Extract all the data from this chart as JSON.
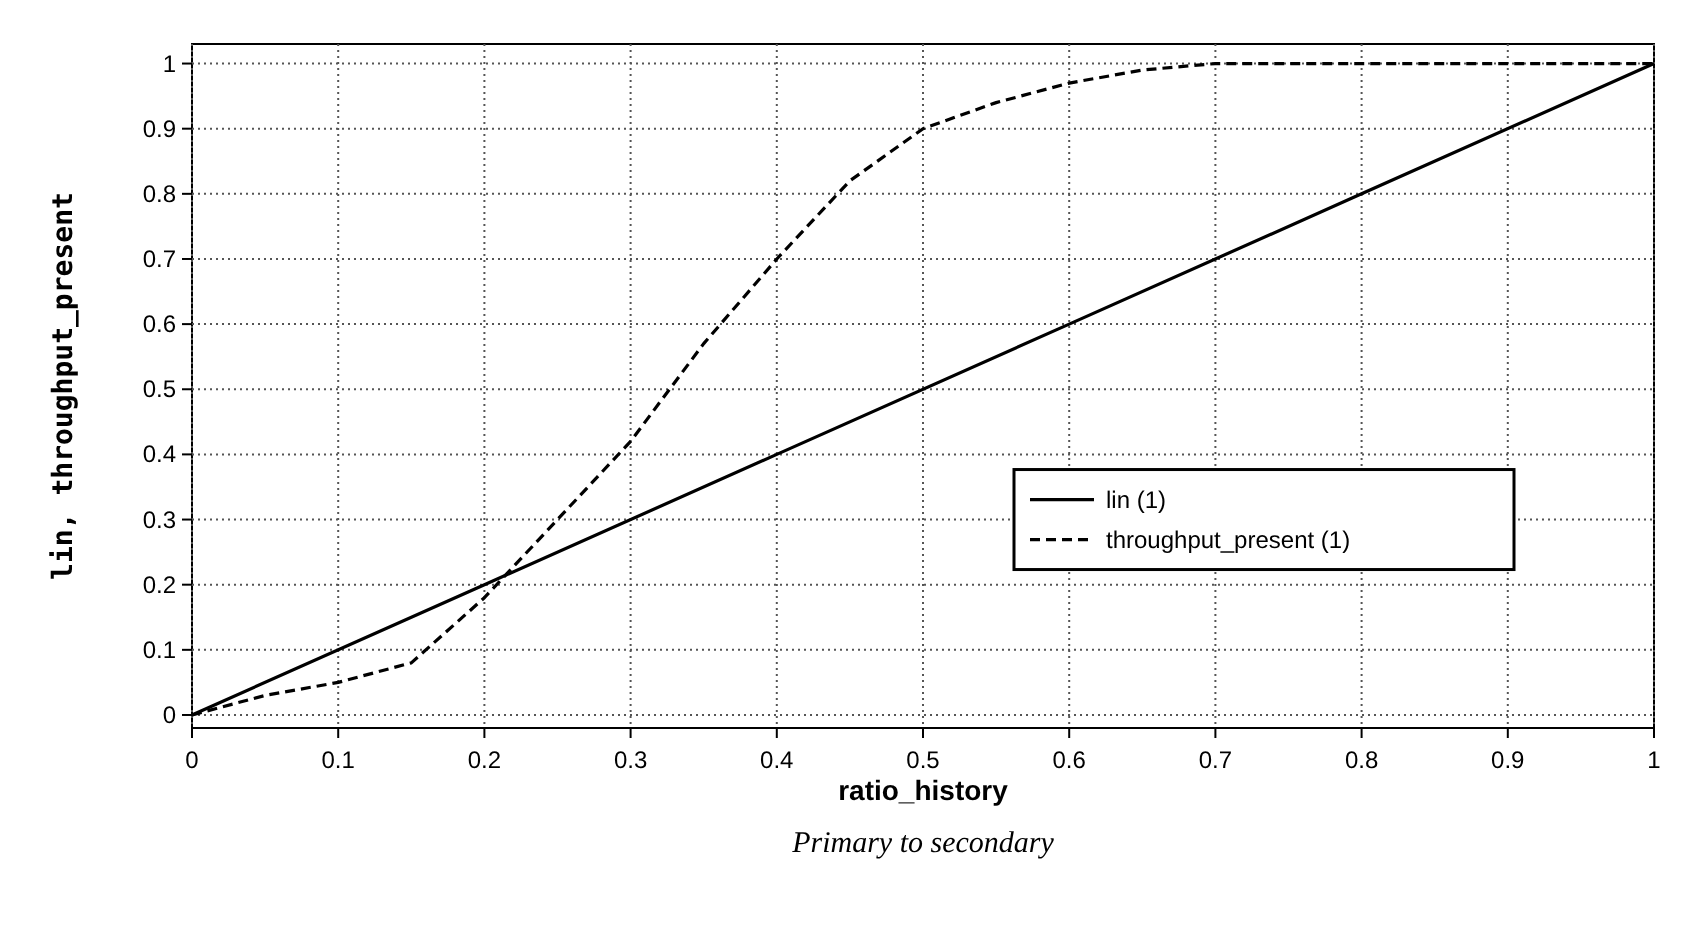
{
  "chart_data": {
    "type": "line",
    "xlabel": "ratio_history",
    "ylabel": "lin, throughput_present",
    "annotations": [
      "Primary to secondary"
    ],
    "xlim": [
      0,
      1
    ],
    "ylim": [
      -0.02,
      1.03
    ],
    "xticks": [
      0,
      0.1,
      0.2,
      0.3,
      0.4,
      0.5,
      0.6,
      0.7,
      0.8,
      0.9,
      1
    ],
    "yticks": [
      0,
      0.1,
      0.2,
      0.3,
      0.4,
      0.5,
      0.6,
      0.7,
      0.8,
      0.9,
      1
    ],
    "grid": true,
    "legend": "right",
    "series": [
      {
        "name": "lin (1)",
        "color": "#000000",
        "line_style": "solid",
        "x": [
          0,
          0.2,
          0.4,
          0.6,
          0.8,
          1
        ],
        "values": [
          0,
          0.2,
          0.4,
          0.6,
          0.8,
          1
        ]
      },
      {
        "name": "throughput_present (1)",
        "color": "#000000",
        "line_style": "dashed",
        "x": [
          0,
          0.05,
          0.1,
          0.15,
          0.2,
          0.25,
          0.3,
          0.35,
          0.4,
          0.45,
          0.5,
          0.55,
          0.6,
          0.65,
          0.7,
          0.8,
          0.9,
          1
        ],
        "values": [
          0,
          0.03,
          0.05,
          0.08,
          0.18,
          0.3,
          0.42,
          0.57,
          0.7,
          0.82,
          0.9,
          0.94,
          0.97,
          0.99,
          1,
          1,
          1,
          1
        ]
      }
    ]
  }
}
